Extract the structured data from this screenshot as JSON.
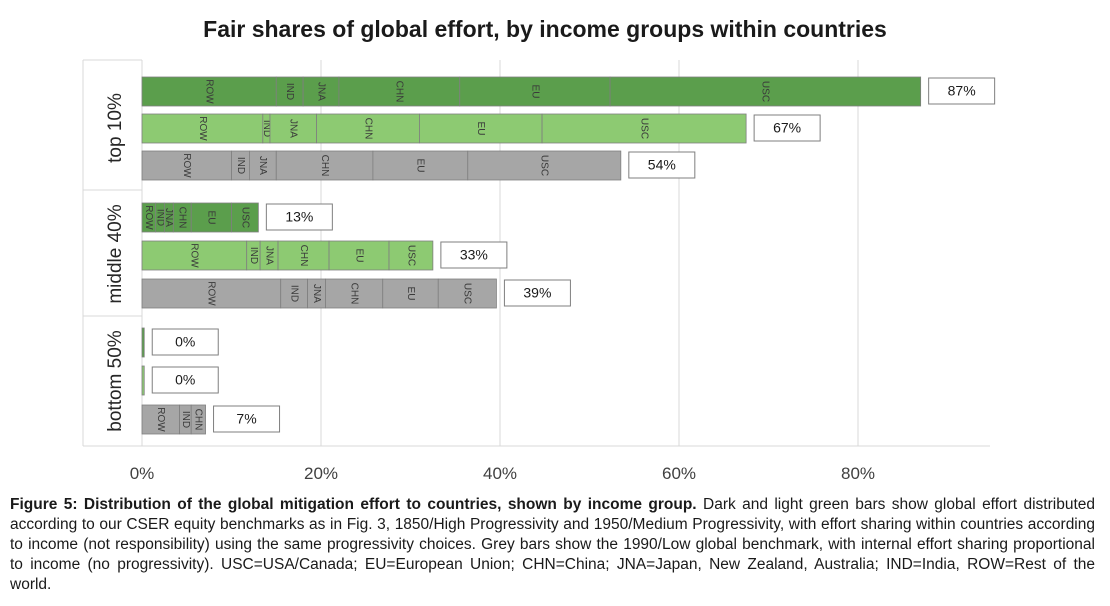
{
  "chart_data": {
    "type": "bar",
    "orientation": "horizontal",
    "stacked": true,
    "title": "Fair shares of global effort, by income groups within countries",
    "xlim": [
      0,
      95
    ],
    "xticks": [
      0,
      20,
      40,
      60,
      80
    ],
    "xtick_labels": [
      "0%",
      "20%",
      "40%",
      "60%",
      "80%"
    ],
    "groups": [
      {
        "label": "top 10%",
        "bars": [
          {
            "style": "dark-green",
            "total_label": "87%",
            "segments": [
              {
                "name": "ROW",
                "value": 15
              },
              {
                "name": "IND",
                "value": 3
              },
              {
                "name": "JNA",
                "value": 4
              },
              {
                "name": "CHN",
                "value": 13.5
              },
              {
                "name": "EU",
                "value": 16.8
              },
              {
                "name": "USC",
                "value": 34.7
              }
            ]
          },
          {
            "style": "light-green",
            "total_label": "67%",
            "segments": [
              {
                "name": "ROW",
                "value": 13.5
              },
              {
                "name": "IND",
                "value": 0.8
              },
              {
                "name": "JNA",
                "value": 5.2
              },
              {
                "name": "CHN",
                "value": 11.5
              },
              {
                "name": "EU",
                "value": 13.7
              },
              {
                "name": "USC",
                "value": 22.8
              }
            ]
          },
          {
            "style": "grey",
            "total_label": "54%",
            "segments": [
              {
                "name": "ROW",
                "value": 10
              },
              {
                "name": "IND",
                "value": 2
              },
              {
                "name": "JNA",
                "value": 3
              },
              {
                "name": "CHN",
                "value": 10.8
              },
              {
                "name": "EU",
                "value": 10.6
              },
              {
                "name": "USC",
                "value": 17.1
              }
            ]
          }
        ]
      },
      {
        "label": "middle 40%",
        "bars": [
          {
            "style": "dark-green",
            "total_label": "13%",
            "segments": [
              {
                "name": "ROW",
                "value": 1.5
              },
              {
                "name": "IND",
                "value": 1
              },
              {
                "name": "JNA",
                "value": 1
              },
              {
                "name": "CHN",
                "value": 2
              },
              {
                "name": "EU",
                "value": 4.5
              },
              {
                "name": "USC",
                "value": 3
              }
            ]
          },
          {
            "style": "light-green",
            "total_label": "33%",
            "segments": [
              {
                "name": "ROW",
                "value": 11.7
              },
              {
                "name": "IND",
                "value": 1.5
              },
              {
                "name": "JNA",
                "value": 2
              },
              {
                "name": "CHN",
                "value": 5.7
              },
              {
                "name": "EU",
                "value": 6.7
              },
              {
                "name": "USC",
                "value": 4.9
              }
            ]
          },
          {
            "style": "grey",
            "total_label": "39%",
            "segments": [
              {
                "name": "ROW",
                "value": 15.5
              },
              {
                "name": "IND",
                "value": 3
              },
              {
                "name": "JNA",
                "value": 2
              },
              {
                "name": "CHN",
                "value": 6.4
              },
              {
                "name": "EU",
                "value": 6.2
              },
              {
                "name": "USC",
                "value": 6.5
              }
            ]
          }
        ]
      },
      {
        "label": "bottom 50%",
        "bars": [
          {
            "style": "dark-green",
            "total_label": "0%",
            "segments": [
              {
                "name": "",
                "value": 0.25
              }
            ]
          },
          {
            "style": "light-green",
            "total_label": "0%",
            "segments": [
              {
                "name": "",
                "value": 0.25
              }
            ]
          },
          {
            "style": "grey",
            "total_label": "7%",
            "segments": [
              {
                "name": "ROW",
                "value": 4.2
              },
              {
                "name": "IND",
                "value": 1.3
              },
              {
                "name": "CHN",
                "value": 1.6
              }
            ]
          }
        ]
      }
    ]
  },
  "colors": {
    "dark-green": "#5b9e4c",
    "light-green": "#8dca72",
    "grey": "#a6a6a6",
    "border": "#7f7f7f",
    "grid": "#d9d9d9"
  },
  "caption": {
    "bold": "Figure 5: Distribution of the global mitigation effort to countries, shown by income group.",
    "rest": " Dark and light green bars show global effort distributed according to our CSER equity benchmarks as in Fig. 3, 1850/High Progressivity and 1950/Medium Progressivity, with effort sharing within countries according to income (not responsibility) using the same progressivity choices. Grey bars show the 1990/Low global benchmark, with internal effort sharing proportional to income (no progressivity). USC=USA/Canada; EU=European Union; CHN=China; JNA=Japan, New Zealand, Australia; IND=India, ROW=Rest of the world."
  }
}
